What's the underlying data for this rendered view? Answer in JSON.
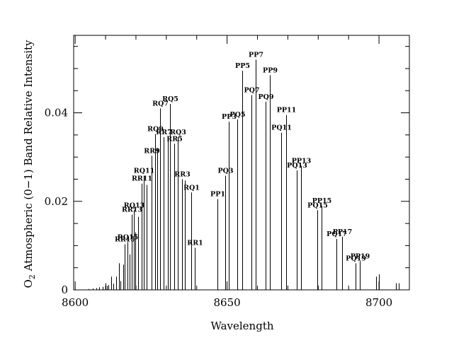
{
  "chart_data": {
    "type": "bar",
    "xlabel": "Wavelength",
    "ylabel_prefix": "O",
    "ylabel_sub": "2",
    "ylabel_rest": " Atmospheric (0−1) Band Relative Intensity",
    "xlim": [
      8599.5,
      8710
    ],
    "ylim": [
      0,
      0.0575
    ],
    "x_ticks": [
      {
        "value": 8600,
        "label": "8600"
      },
      {
        "value": 8650,
        "label": "8650"
      },
      {
        "value": 8700,
        "label": "8700"
      }
    ],
    "y_ticks": [
      {
        "value": 0,
        "label": "0"
      },
      {
        "value": 0.02,
        "label": "0.02"
      },
      {
        "value": 0.04,
        "label": "0.04"
      }
    ],
    "lines": [
      {
        "x": 8604.3,
        "y": 0.0002
      },
      {
        "x": 8605.7,
        "y": 0.0003
      },
      {
        "x": 8607.0,
        "y": 0.0004
      },
      {
        "x": 8608.0,
        "y": 0.0006
      },
      {
        "x": 8609.0,
        "y": 0.0007
      },
      {
        "x": 8610.0,
        "y": 0.0015
      },
      {
        "x": 8610.5,
        "y": 0.0009
      },
      {
        "x": 8611.0,
        "y": 0.0011
      },
      {
        "x": 8611.8,
        "y": 0.003
      },
      {
        "x": 8612.5,
        "y": 0.0014
      },
      {
        "x": 8613.6,
        "y": 0.003
      },
      {
        "x": 8614.5,
        "y": 0.006
      },
      {
        "x": 8615.0,
        "y": 0.002
      },
      {
        "x": 8615.9,
        "y": 0.0057
      },
      {
        "x": 8616.4,
        "y": 0.0103,
        "label": "RR15"
      },
      {
        "x": 8617.3,
        "y": 0.0108,
        "label": "RQ15"
      },
      {
        "x": 8617.9,
        "y": 0.008
      },
      {
        "x": 8618.6,
        "y": 0.017,
        "label": "RR13"
      },
      {
        "x": 8619.4,
        "y": 0.018,
        "label": "RQ13"
      },
      {
        "x": 8619.8,
        "y": 0.013
      },
      {
        "x": 8620.7,
        "y": 0.0165
      },
      {
        "x": 8621.9,
        "y": 0.024,
        "label": "RR11"
      },
      {
        "x": 8622.6,
        "y": 0.0258,
        "label": "RQ11"
      },
      {
        "x": 8623.6,
        "y": 0.0237
      },
      {
        "x": 8625.2,
        "y": 0.0303,
        "label": "RR9"
      },
      {
        "x": 8626.3,
        "y": 0.0352,
        "label": "RQ9"
      },
      {
        "x": 8627.0,
        "y": 0.032
      },
      {
        "x": 8628.0,
        "y": 0.041,
        "label": "RQ7"
      },
      {
        "x": 8629.0,
        "y": 0.0345,
        "label": "RR7"
      },
      {
        "x": 8630.4,
        "y": 0.0345
      },
      {
        "x": 8631.2,
        "y": 0.042,
        "label": "RQ5"
      },
      {
        "x": 8632.5,
        "y": 0.033,
        "label": "RR5"
      },
      {
        "x": 8633.8,
        "y": 0.0345,
        "label": "RQ3"
      },
      {
        "x": 8635.1,
        "y": 0.025,
        "label": "RR3"
      },
      {
        "x": 8636.0,
        "y": 0.0247
      },
      {
        "x": 8638.2,
        "y": 0.022,
        "label": "RQ1"
      },
      {
        "x": 8639.3,
        "y": 0.0095,
        "label": "RR1"
      },
      {
        "x": 8646.9,
        "y": 0.0205,
        "label": "PP1"
      },
      {
        "x": 8649.3,
        "y": 0.0258,
        "label": "PQ3"
      },
      {
        "x": 8650.6,
        "y": 0.038,
        "label": "PP3"
      },
      {
        "x": 8653.4,
        "y": 0.0385,
        "label": "PQ5"
      },
      {
        "x": 8655.0,
        "y": 0.0495,
        "label": "PP5"
      },
      {
        "x": 8658.0,
        "y": 0.044,
        "label": "PQ7"
      },
      {
        "x": 8659.5,
        "y": 0.052,
        "label": "PP7"
      },
      {
        "x": 8662.6,
        "y": 0.0425,
        "label": "PQ9"
      },
      {
        "x": 8664.0,
        "y": 0.0485,
        "label": "PP9"
      },
      {
        "x": 8667.8,
        "y": 0.0355,
        "label": "PQ11"
      },
      {
        "x": 8669.4,
        "y": 0.0395,
        "label": "PP11"
      },
      {
        "x": 8673.0,
        "y": 0.027,
        "label": "PQ13"
      },
      {
        "x": 8674.4,
        "y": 0.028,
        "label": "PP13"
      },
      {
        "x": 8679.6,
        "y": 0.018,
        "label": "PQ15"
      },
      {
        "x": 8681.1,
        "y": 0.019,
        "label": "PP15"
      },
      {
        "x": 8686.1,
        "y": 0.0115,
        "label": "PQ17"
      },
      {
        "x": 8687.9,
        "y": 0.012,
        "label": "PP17"
      },
      {
        "x": 8692.2,
        "y": 0.006,
        "label": "PQ19"
      },
      {
        "x": 8693.7,
        "y": 0.0065,
        "label": "PP19"
      },
      {
        "x": 8699.0,
        "y": 0.003
      },
      {
        "x": 8700.0,
        "y": 0.0035
      },
      {
        "x": 8705.5,
        "y": 0.0015
      },
      {
        "x": 8706.5,
        "y": 0.0015
      }
    ]
  }
}
